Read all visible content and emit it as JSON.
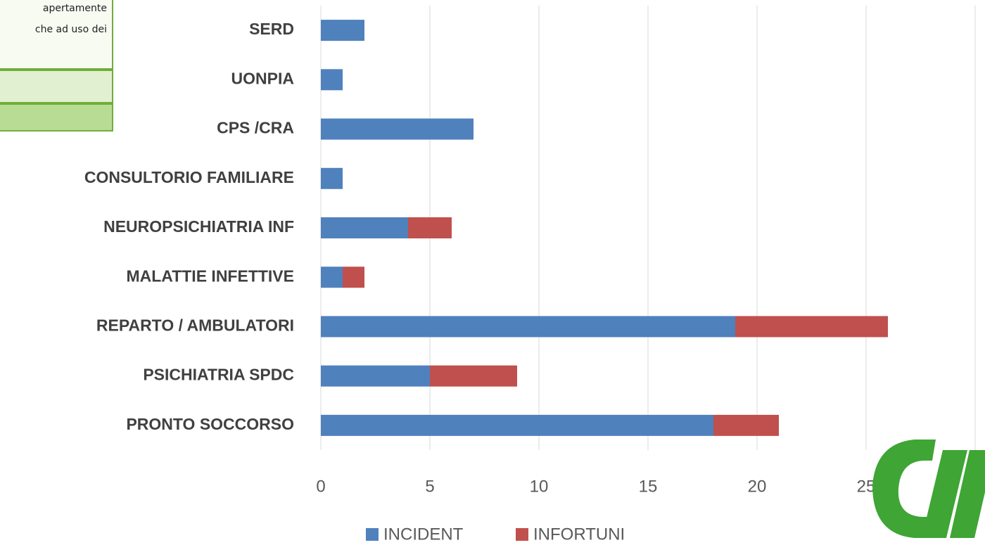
{
  "chart_data": {
    "type": "stacked_barh",
    "annotations": [
      "apertamente",
      "che ad uso dei"
    ],
    "categories": [
      "SERD",
      "UONPIA",
      "CPS  /CRA",
      "CONSULTORIO FAMILIARE",
      "NEUROPSICHIATRIA INF",
      "MALATTIE INFETTIVE",
      "REPARTO / AMBULATORI",
      "PSICHIATRIA SPDC",
      "PRONTO SOCCORSO"
    ],
    "series": [
      {
        "name": "INCIDENT",
        "color": "#4f81bd",
        "values": [
          2,
          1,
          7,
          1,
          4,
          1,
          19,
          5,
          18
        ]
      },
      {
        "name": "INFORTUNI",
        "color": "#c0504d",
        "values": [
          0,
          0,
          0,
          0,
          2,
          1,
          7,
          4,
          3
        ]
      }
    ],
    "xlim": [
      0,
      30
    ],
    "xticks": [
      0,
      5,
      10,
      15,
      20,
      25,
      30
    ],
    "grid": true
  }
}
